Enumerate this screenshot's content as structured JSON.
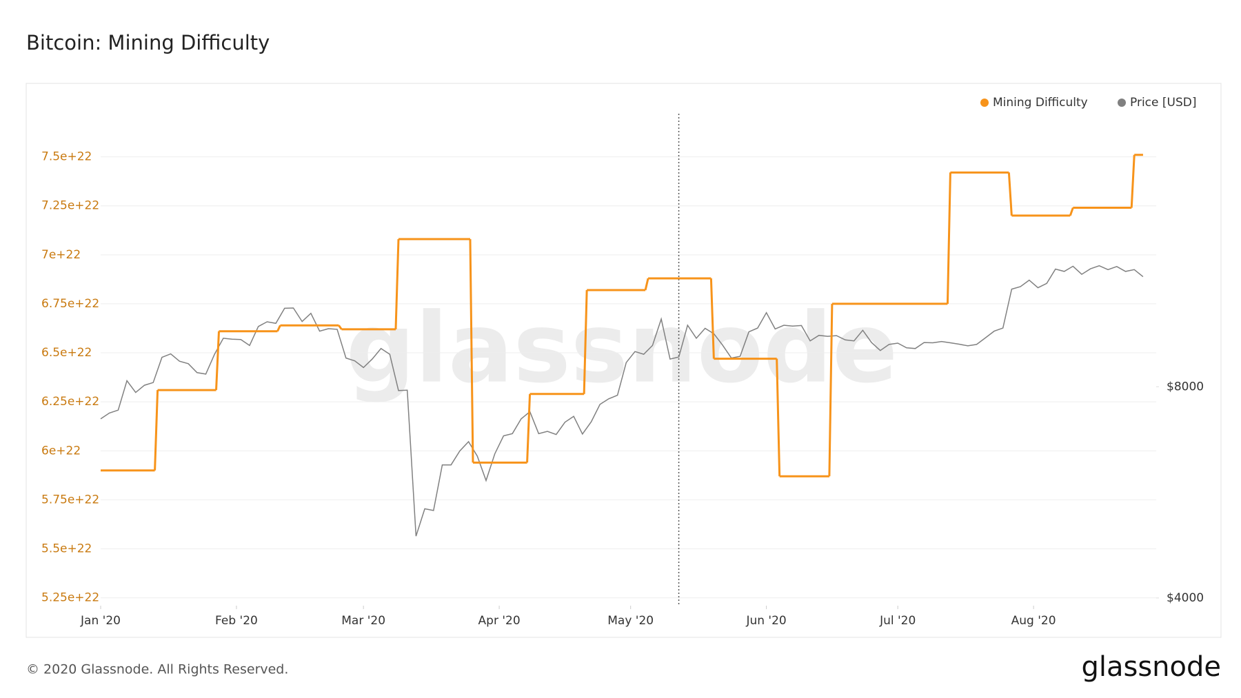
{
  "title": "Bitcoin: Mining Difficulty",
  "footer": "© 2020 Glassnode. All Rights Reserved.",
  "logo": "glassnode",
  "chart_data": {
    "type": "line",
    "watermark": "glassnode",
    "xlim": [
      0,
      241
    ],
    "xticks": [
      {
        "value": 0,
        "label": "Jan '20"
      },
      {
        "value": 31,
        "label": "Feb '20"
      },
      {
        "value": 60,
        "label": "Mar '20"
      },
      {
        "value": 91,
        "label": "Apr '20"
      },
      {
        "value": 121,
        "label": "May '20"
      },
      {
        "value": 152,
        "label": "Jun '20"
      },
      {
        "value": 182,
        "label": "Jul '20"
      },
      {
        "value": 213,
        "label": "Aug '20"
      }
    ],
    "ylim": [
      5.21e+22,
      7.72e+22
    ],
    "yticks": [
      {
        "value": 5.25e+22,
        "label": "5.25e+22"
      },
      {
        "value": 5.5e+22,
        "label": "5.5e+22"
      },
      {
        "value": 5.75e+22,
        "label": "5.75e+22"
      },
      {
        "value": 6e+22,
        "label": "6e+22"
      },
      {
        "value": 6.25e+22,
        "label": "6.25e+22"
      },
      {
        "value": 6.5e+22,
        "label": "6.5e+22"
      },
      {
        "value": 6.75e+22,
        "label": "6.75e+22"
      },
      {
        "value": 7e+22,
        "label": "7e+22"
      },
      {
        "value": 7.25e+22,
        "label": "7.25e+22"
      },
      {
        "value": 7.5e+22,
        "label": "7.5e+22"
      }
    ],
    "y2lim": [
      3900,
      19600
    ],
    "y2log": true,
    "y2ticks": [
      {
        "value": 4000,
        "label": "$4000"
      },
      {
        "value": 8000,
        "label": "$8000"
      }
    ],
    "grid": true,
    "legend": "top-right",
    "vline": 132,
    "series": [
      {
        "name": "Mining Difficulty",
        "color": "#f7931a",
        "step": true,
        "x": [
          0,
          13,
          27,
          41,
          55,
          68,
          85,
          98,
          111,
          125,
          140,
          155,
          167,
          194,
          208,
          222,
          236
        ],
        "values": [
          5.9e+22,
          6.31e+22,
          6.61e+22,
          6.64e+22,
          6.62e+22,
          7.08e+22,
          5.94e+22,
          6.29e+22,
          6.82e+22,
          6.88e+22,
          6.47e+22,
          5.87e+22,
          6.75e+22,
          7.42e+22,
          7.2e+22,
          7.24e+22,
          7.51e+22
        ]
      },
      {
        "name": "Price [USD]",
        "color": "#808080",
        "axis": "y2",
        "x": [
          0,
          2,
          4,
          6,
          8,
          10,
          12,
          14,
          16,
          18,
          20,
          22,
          24,
          26,
          28,
          30,
          32,
          34,
          36,
          38,
          40,
          42,
          44,
          46,
          48,
          50,
          52,
          54,
          56,
          58,
          60,
          62,
          64,
          66,
          68,
          70,
          72,
          74,
          76,
          78,
          80,
          82,
          84,
          86,
          88,
          90,
          92,
          94,
          96,
          98,
          100,
          102,
          104,
          106,
          108,
          110,
          112,
          114,
          116,
          118,
          120,
          122,
          124,
          126,
          128,
          130,
          132,
          134,
          136,
          138,
          140,
          142,
          144,
          146,
          148,
          150,
          152,
          154,
          156,
          158,
          160,
          162,
          164,
          166,
          168,
          170,
          172,
          174,
          176,
          178,
          180,
          182,
          184,
          186,
          188,
          190,
          192,
          194,
          196,
          198,
          200,
          202,
          204,
          206,
          208,
          210,
          212,
          214,
          216,
          218,
          220,
          222,
          224,
          226,
          228,
          230,
          232,
          234,
          236,
          238
        ],
        "values": [
          7200,
          7340,
          7410,
          8160,
          7850,
          8040,
          8110,
          8810,
          8910,
          8700,
          8630,
          8380,
          8340,
          8900,
          9380,
          9350,
          9340,
          9160,
          9750,
          9900,
          9850,
          10350,
          10360,
          9910,
          10180,
          9600,
          9680,
          9660,
          8790,
          8710,
          8520,
          8760,
          9070,
          8900,
          7900,
          7910,
          4900,
          5360,
          5330,
          6190,
          6190,
          6480,
          6680,
          6370,
          5880,
          6420,
          6810,
          6860,
          7200,
          7370,
          6860,
          6910,
          6840,
          7120,
          7260,
          6850,
          7130,
          7550,
          7690,
          7780,
          8660,
          8980,
          8900,
          9160,
          9990,
          8760,
          8820,
          9790,
          9380,
          9690,
          9520,
          9170,
          8790,
          8840,
          9580,
          9700,
          10200,
          9670,
          9790,
          9760,
          9780,
          9300,
          9470,
          9440,
          9460,
          9330,
          9300,
          9630,
          9250,
          9010,
          9190,
          9230,
          9090,
          9070,
          9250,
          9240,
          9280,
          9240,
          9200,
          9150,
          9190,
          9390,
          9600,
          9700,
          11020,
          11110,
          11350,
          11070,
          11230,
          11770,
          11680,
          11880,
          11570,
          11780,
          11900,
          11750,
          11870,
          11680,
          11750,
          11480
        ]
      }
    ]
  }
}
